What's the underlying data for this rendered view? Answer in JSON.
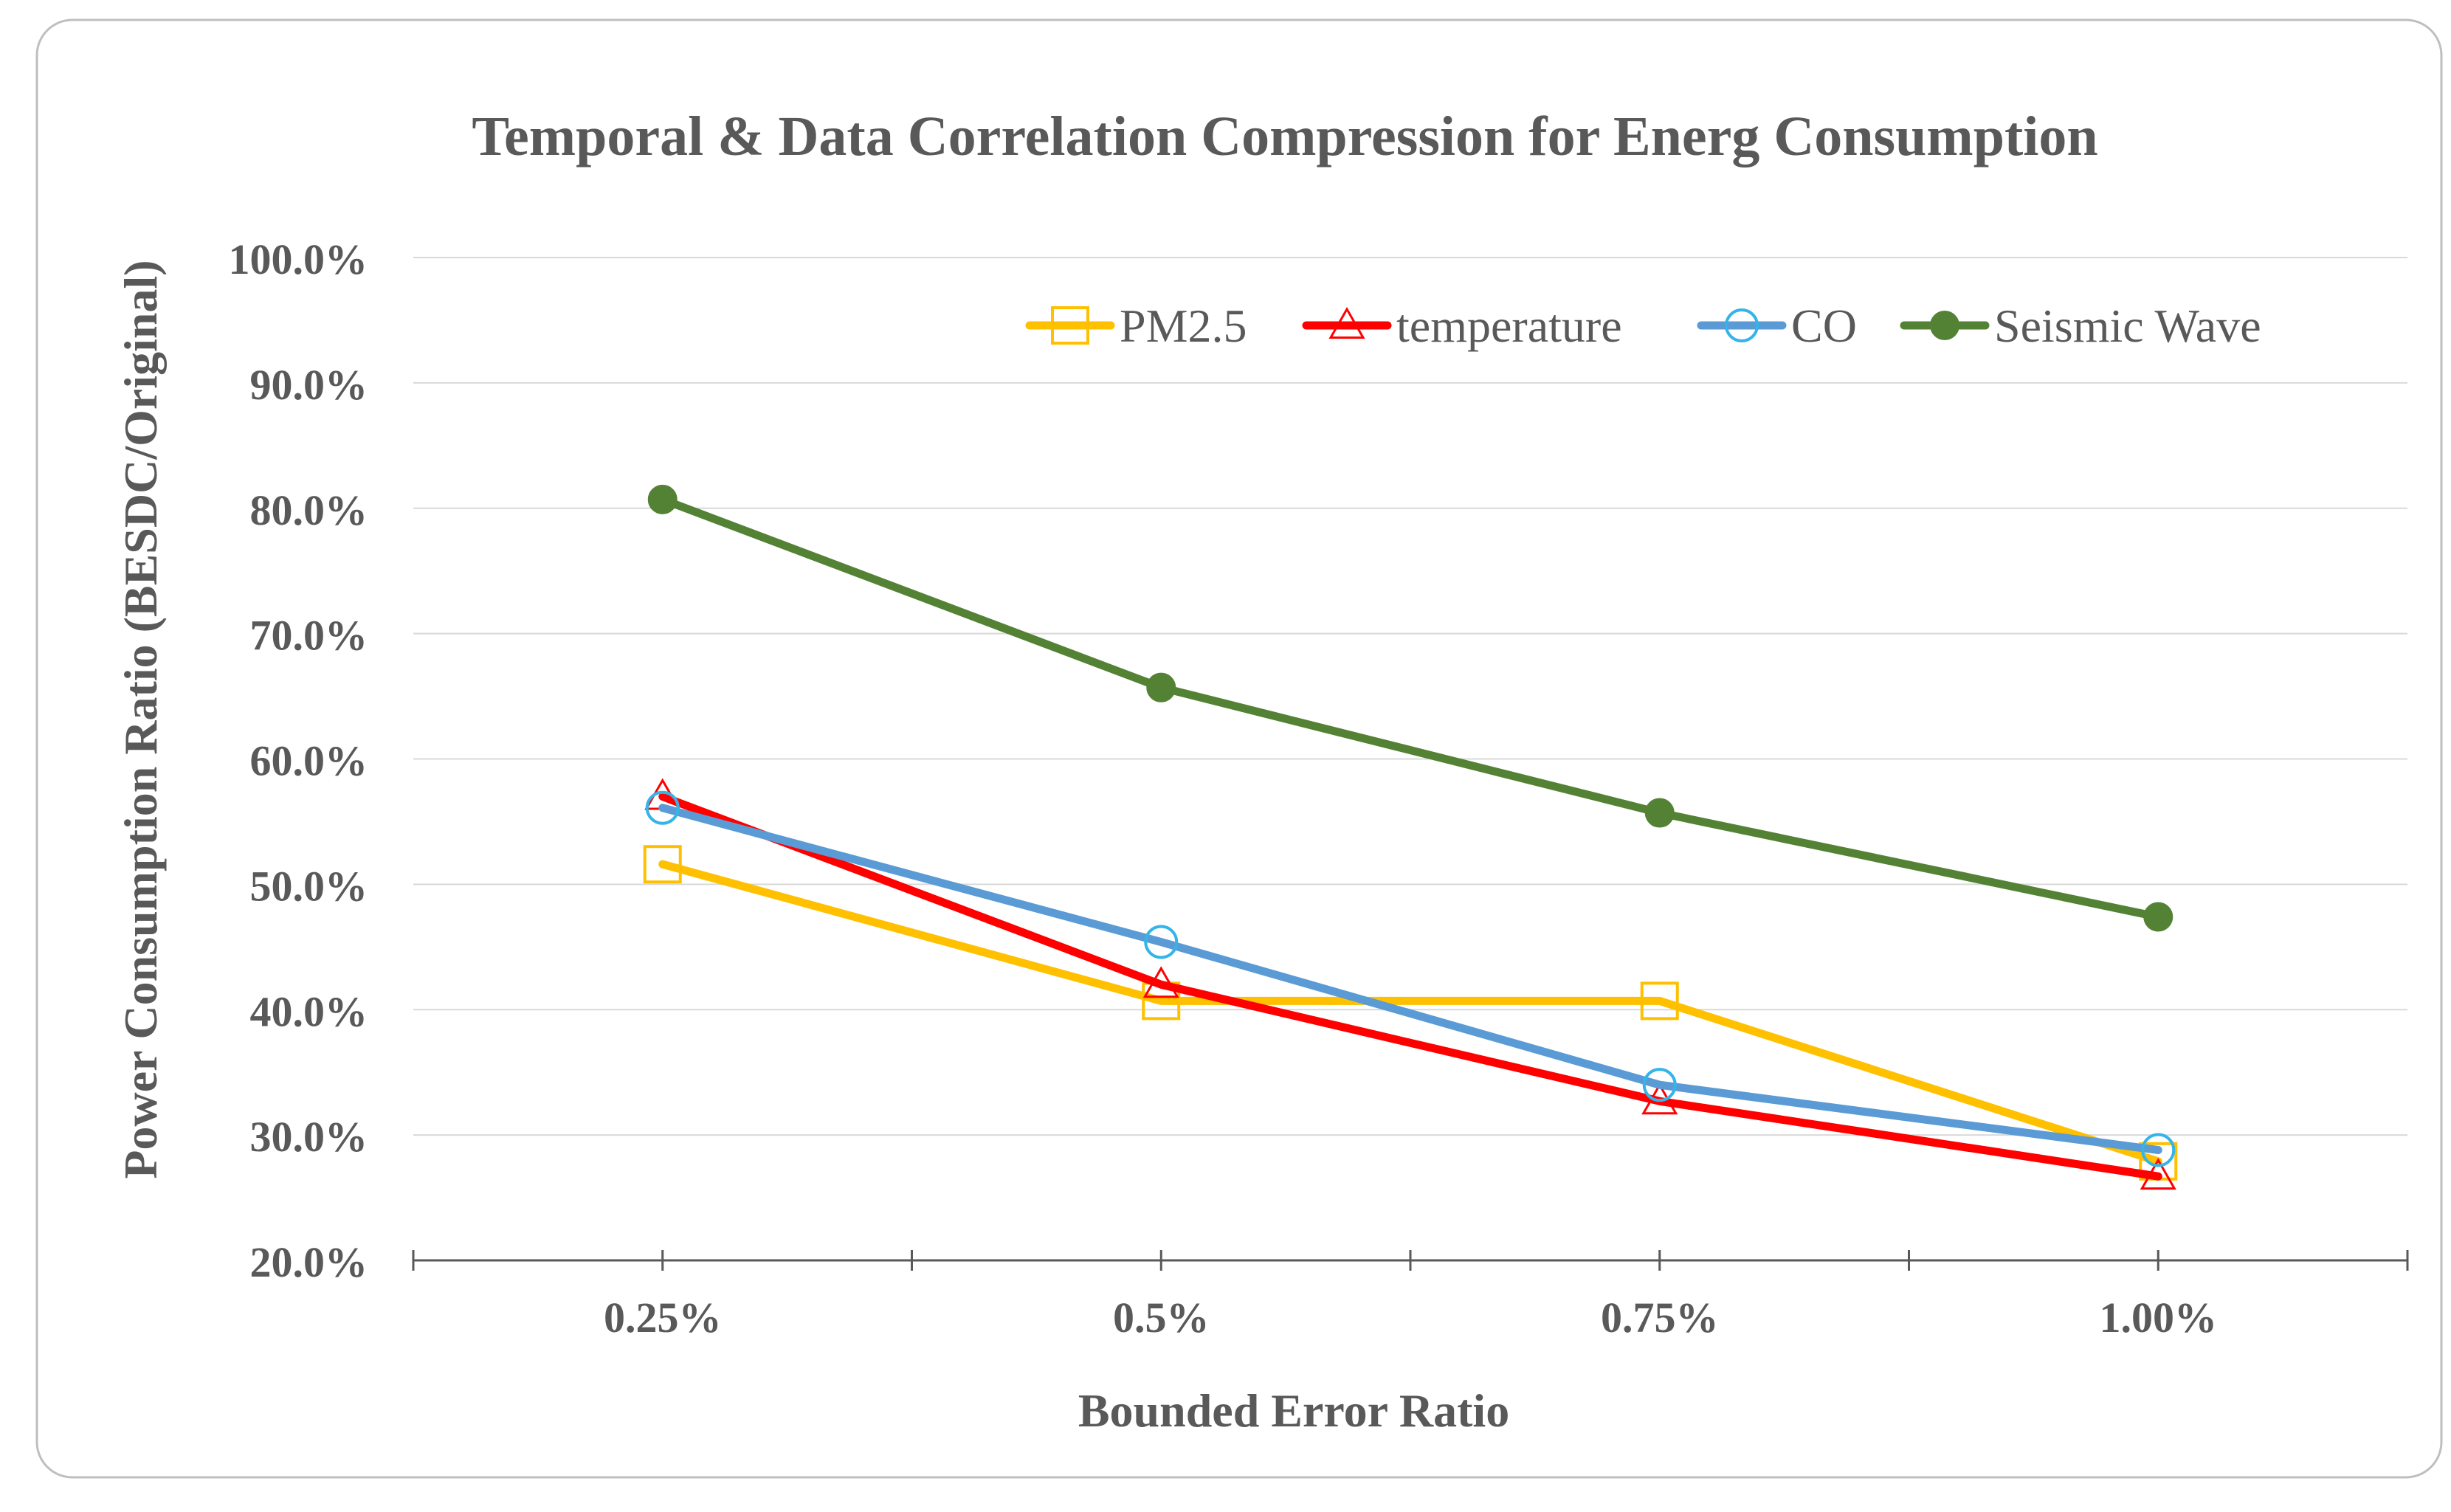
{
  "chart_data": {
    "type": "line",
    "title": "Temporal & Data Correlation Compression for Energ Consumption",
    "xlabel": "Bounded Error Ratio",
    "ylabel": "Power Consumption  Ratio (BESDC/Original)",
    "categories": [
      "0.25%",
      "0.5%",
      "0.75%",
      "1.00%"
    ],
    "ylim": [
      0.2,
      1.0
    ],
    "ytick_values": [
      0.2,
      0.3,
      0.4,
      0.5,
      0.6,
      0.7,
      0.8,
      0.9,
      1.0
    ],
    "ytick_labels": [
      "20.0%",
      "30.0%",
      "40.0%",
      "50.0%",
      "60.0%",
      "70.0%",
      "80.0%",
      "90.0%",
      "100.0%"
    ],
    "grid": true,
    "legend_position": "top-right",
    "series": [
      {
        "name": "PM2.5",
        "values": [
          0.516,
          0.407,
          0.407,
          0.279
        ],
        "color": "#FFC000",
        "marker": "square"
      },
      {
        "name": "temperature",
        "values": [
          0.57,
          0.42,
          0.327,
          0.267
        ],
        "color": "#FF0000",
        "marker": "triangle"
      },
      {
        "name": "CO",
        "values": [
          0.561,
          0.454,
          0.34,
          0.288
        ],
        "color": "#5B9BD5",
        "marker": "circle-open"
      },
      {
        "name": "Seismic Wave",
        "values": [
          0.807,
          0.657,
          0.557,
          0.474
        ],
        "color": "#548235",
        "marker": "circle-filled"
      }
    ]
  }
}
